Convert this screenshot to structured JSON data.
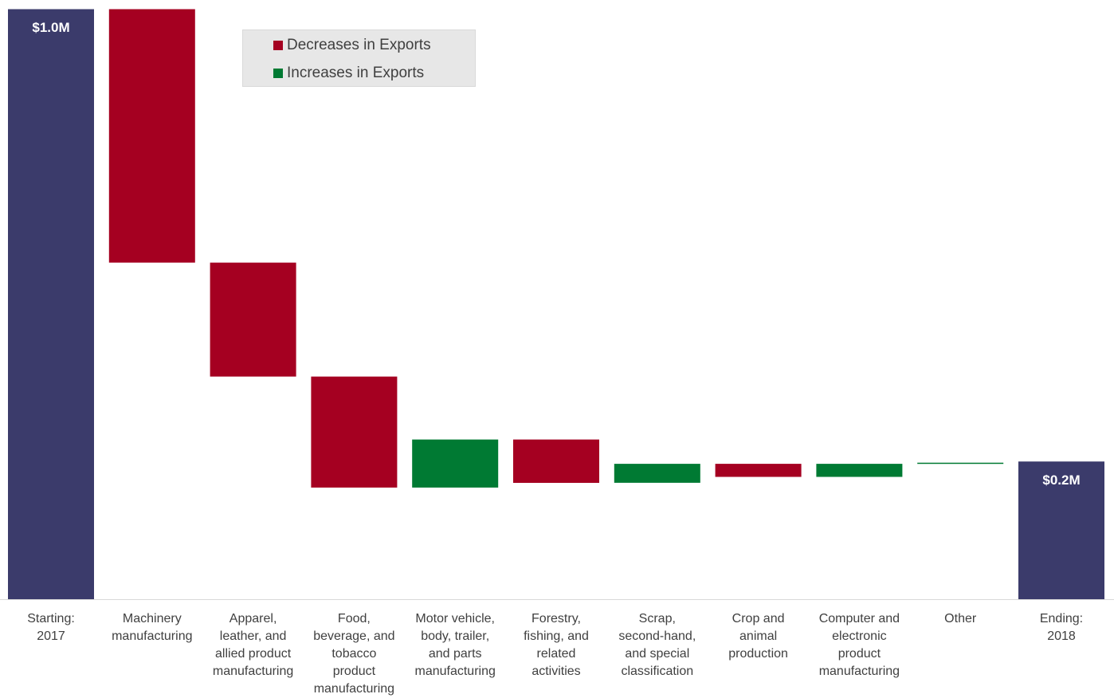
{
  "chart_data": {
    "type": "bar",
    "subtype": "waterfall",
    "categories": [
      "Starting:\n2017",
      "Machinery\nmanufacturing",
      "Apparel,\nleather, and\nallied product\nmanufacturing",
      "Food,\nbeverage, and\ntobacco\nproduct\nmanufacturing",
      "Motor vehicle,\nbody, trailer,\nand parts\nmanufacturing",
      "Forestry,\nfishing, and\nrelated\nactivities",
      "Scrap,\nsecond-hand,\nand special\nclassification",
      "Crop and\nanimal\nproduction",
      "Computer and\nelectronic\nproduct\nmanufacturing",
      "Other",
      "Ending:\n2018"
    ],
    "steps": [
      {
        "kind": "total",
        "value": 0.994
      },
      {
        "kind": "delta",
        "value": -0.427
      },
      {
        "kind": "delta",
        "value": -0.192
      },
      {
        "kind": "delta",
        "value": -0.187
      },
      {
        "kind": "delta",
        "value": 0.081
      },
      {
        "kind": "delta",
        "value": -0.073
      },
      {
        "kind": "delta",
        "value": 0.032
      },
      {
        "kind": "delta",
        "value": -0.022
      },
      {
        "kind": "delta",
        "value": 0.022
      },
      {
        "kind": "delta",
        "value": 0.002
      },
      {
        "kind": "total",
        "value": 0.232
      }
    ],
    "total_labels": [
      "$1.0M",
      "$0.2M"
    ],
    "legend": [
      {
        "label": "Decreases in Exports",
        "color": "#a50021"
      },
      {
        "label": "Increases in Exports",
        "color": "#007a33"
      }
    ],
    "colors": {
      "total": "#3b3b6b",
      "decrease": "#a50021",
      "increase": "#007a33",
      "axis": "#d9d9d9"
    },
    "ylim": [
      0,
      1
    ],
    "grid": false,
    "legend_position": "top-left"
  }
}
